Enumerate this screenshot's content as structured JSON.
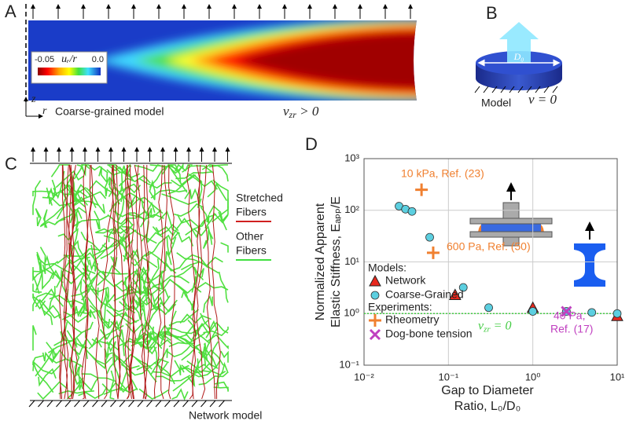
{
  "panel_labels": [
    "A",
    "B",
    "C",
    "D"
  ],
  "panel_a": {
    "colorbar_min": "-0.05",
    "colorbar_label": "uᵣ/r",
    "colorbar_max": "0.0",
    "axis_z": "z",
    "axis_r": "r",
    "caption": "Coarse-grained model",
    "nu_label": {
      "base": "ν",
      "sub": "zr",
      "text": " > 0"
    }
  },
  "panel_b": {
    "diameter": "D₀",
    "caption": "Model",
    "nu_label": "ν = 0"
  },
  "panel_c": {
    "legend": [
      "Stretched",
      "Fibers",
      "Other",
      "Fibers"
    ],
    "caption": "Network model"
  },
  "chart_data": {
    "type": "scatter",
    "xscale": "log",
    "yscale": "log",
    "xlim": [
      0.01,
      10
    ],
    "ylim": [
      0.1,
      1000
    ],
    "xticks": [
      {
        "value": 0.01,
        "label": "10⁻²"
      },
      {
        "value": 0.1,
        "label": "10⁻¹"
      },
      {
        "value": 1,
        "label": "10⁰"
      },
      {
        "value": 10,
        "label": "10¹"
      }
    ],
    "yticks": [
      {
        "value": 0.1,
        "label": "10⁻¹"
      },
      {
        "value": 1,
        "label": "10⁰"
      },
      {
        "value": 10,
        "label": "10¹"
      },
      {
        "value": 100,
        "label": "10²"
      },
      {
        "value": 1000,
        "label": "10³"
      }
    ],
    "grid": true,
    "x_label": [
      "Gap to Diameter",
      "Ratio, L₀/D₀"
    ],
    "y_label": [
      "Normalized Apparent",
      "Elastic Stiffness, Eₐₚₚ/E"
    ],
    "legend_headings": [
      "Models:",
      "Experiments:"
    ],
    "series": [
      {
        "name": "Network",
        "marker": "triangle",
        "color": "#e8281e",
        "x": [
          0.12,
          1,
          10
        ],
        "values": [
          2.3,
          1.3,
          0.9
        ]
      },
      {
        "name": "Coarse-Grained",
        "marker": "circle",
        "color": "#5ccfe0",
        "x": [
          0.026,
          0.031,
          0.037,
          0.06,
          0.15,
          0.3,
          1,
          2.5,
          5,
          10
        ],
        "values": [
          120,
          105,
          95,
          30,
          3.2,
          1.3,
          1.1,
          1.1,
          1.05,
          1.0
        ]
      },
      {
        "name": "Rheometry",
        "marker": "plus",
        "color": "#f08030",
        "x": [
          0.048,
          0.066
        ],
        "values": [
          250,
          15
        ]
      },
      {
        "name": "Dog-bone tension",
        "marker": "x",
        "color": "#c040c0",
        "x": [
          2.5
        ],
        "values": [
          1.1
        ]
      }
    ],
    "reference_line": {
      "value": 1,
      "color": "#44cc44",
      "label": {
        "base": "ν",
        "sub": "zr",
        "text": " = 0"
      }
    },
    "annotations": [
      {
        "text": "10 kPa, Ref. (23)",
        "color": "#f08030"
      },
      {
        "text": "600 Pa, Ref. (50)",
        "color": "#f08030"
      },
      {
        "text": "40 Pa,",
        "color": "#c040c0"
      },
      {
        "text": "Ref. (17)",
        "color": "#c040c0"
      }
    ]
  }
}
